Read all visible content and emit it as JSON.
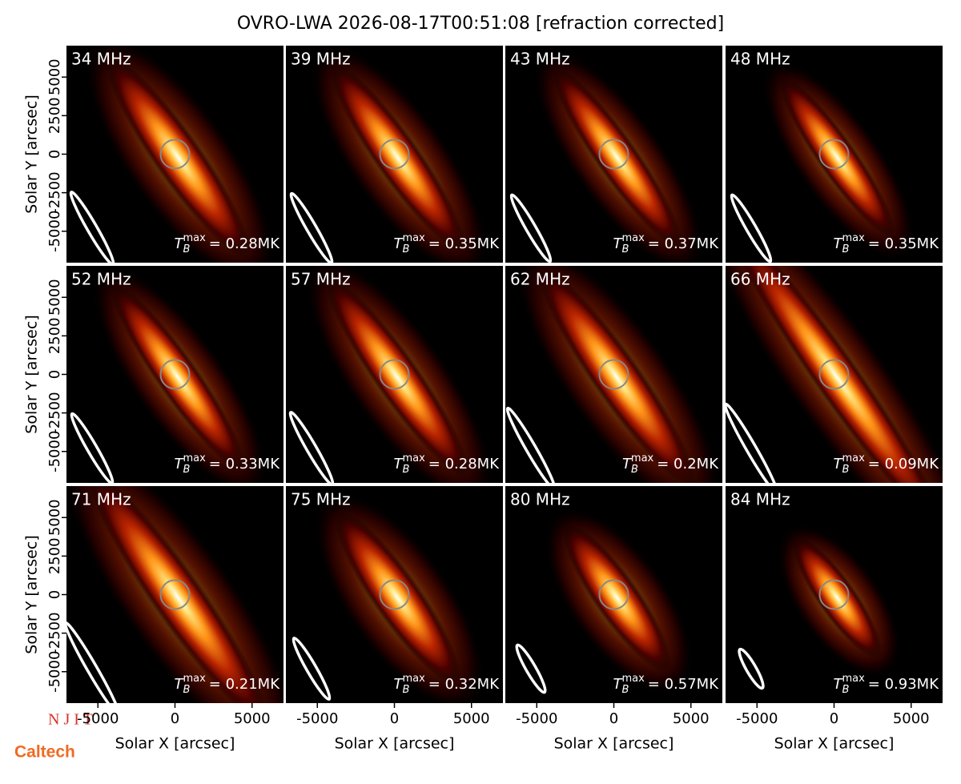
{
  "title": "OVRO-LWA 2026-08-17T00:51:08 [refraction corrected]",
  "x_label": "Solar X [arcsec]",
  "y_label": "Solar Y [arcsec]",
  "xlim": [
    -7040,
    7040
  ],
  "ylim": [
    -7040,
    7040
  ],
  "xticks": [
    -5000,
    0,
    5000
  ],
  "yticks": [
    -5000,
    -2500,
    0,
    2500,
    5000
  ],
  "tb_symbol": "T",
  "tb_sub": "B",
  "tb_sup": "max",
  "panels": [
    {
      "frequency": "34 MHz",
      "tb_text": "= 0.28MK"
    },
    {
      "frequency": "39 MHz",
      "tb_text": "= 0.35MK"
    },
    {
      "frequency": "43 MHz",
      "tb_text": "= 0.37MK"
    },
    {
      "frequency": "48 MHz",
      "tb_text": "= 0.35MK"
    },
    {
      "frequency": "52 MHz",
      "tb_text": "= 0.33MK"
    },
    {
      "frequency": "57 MHz",
      "tb_text": "= 0.28MK"
    },
    {
      "frequency": "62 MHz",
      "tb_text": "= 0.2MK"
    },
    {
      "frequency": "66 MHz",
      "tb_text": "= 0.09MK"
    },
    {
      "frequency": "71 MHz",
      "tb_text": "= 0.21MK"
    },
    {
      "frequency": "75 MHz",
      "tb_text": "= 0.32MK"
    },
    {
      "frequency": "80 MHz",
      "tb_text": "= 0.57MK"
    },
    {
      "frequency": "84 MHz",
      "tb_text": "= 0.93MK"
    }
  ],
  "logos": {
    "njit": "N J I T",
    "caltech": "Caltech"
  }
}
